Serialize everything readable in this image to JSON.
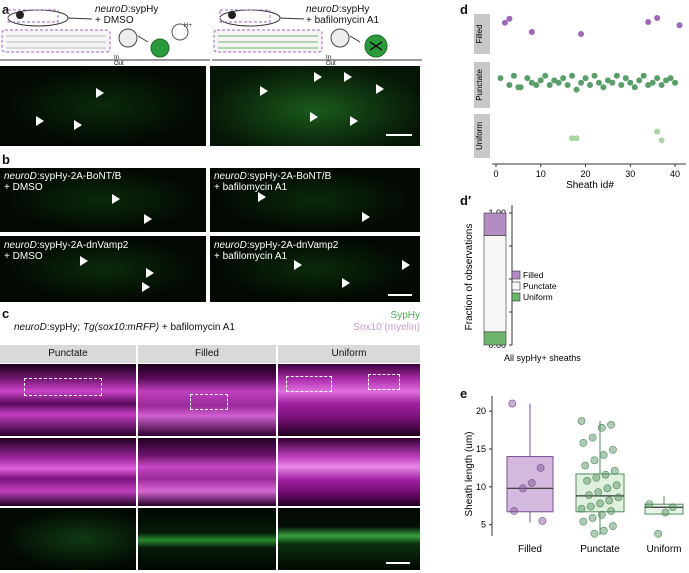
{
  "panel_labels": {
    "a": "a",
    "b": "b",
    "c": "c",
    "d": "d",
    "d_prime": "d′",
    "e": "e"
  },
  "panel_a": {
    "left_label_gene": "neuroD",
    "left_label_suffix": ":sypHy",
    "left_label_line2": "+ DMSO",
    "right_label_gene": "neuroD",
    "right_label_suffix": ":sypHy",
    "right_label_line2": "+ bafilomycin A1",
    "in_label": "In",
    "out_label": "Out",
    "h_plus": "H+"
  },
  "panel_b": {
    "tl_gene": "neuroD",
    "tl_suffix": ":sypHy-2A-BoNT/B",
    "tl_line2": "+ DMSO",
    "tr_gene": "neuroD",
    "tr_suffix": ":sypHy-2A-BoNT/B",
    "tr_line2": "+ bafilomycin A1",
    "bl_gene": "neuroD",
    "bl_suffix": ":sypHy-2A-dnVamp2",
    "bl_line2": "+ DMSO",
    "br_gene": "neuroD",
    "br_suffix": ":sypHy-2A-dnVamp2",
    "br_line2": "+ bafilomycin A1"
  },
  "panel_c": {
    "title_gene": "neuroD",
    "title_mid": ":sypHy; ",
    "title_tg": "Tg(sox10:mRFP)",
    "title_end": " + bafilomycin A1",
    "legend_sypHy": "SypHy",
    "legend_sox10": "Sox10 (myelin)",
    "columns": [
      "Punctate",
      "Filled",
      "Uniform"
    ],
    "colors": {
      "sypHy": "#4daa57",
      "sox10": "#c77fc7"
    }
  },
  "chart_data": [
    {
      "id": "d",
      "type": "scatter",
      "xlabel": "Sheath id#",
      "categories": [
        "Filled",
        "Punctate",
        "Uniform"
      ],
      "xlim": [
        0,
        42
      ],
      "xticks": [
        0,
        10,
        20,
        30,
        40
      ],
      "colors": {
        "Filled": "#a066b8",
        "Punctate": "#5a9e6a",
        "Uniform": "#a8d6a0"
      },
      "series": [
        {
          "name": "Filled",
          "x": [
            2,
            3,
            8,
            19,
            34,
            36,
            41
          ],
          "y": [
            0.22,
            0.12,
            0.45,
            0.5,
            0.2,
            0.1,
            0.28
          ]
        },
        {
          "name": "Punctate",
          "x": [
            1,
            3,
            4,
            5,
            5.5,
            7,
            8,
            9,
            10,
            11,
            12,
            13,
            14,
            15,
            16,
            17,
            18,
            19,
            20,
            21,
            22,
            23,
            24,
            25,
            26,
            27,
            28,
            29,
            30,
            31,
            32,
            33,
            34,
            35,
            36,
            37,
            38,
            39,
            40
          ],
          "y": [
            0.35,
            0.5,
            0.3,
            0.55,
            0.55,
            0.35,
            0.45,
            0.5,
            0.4,
            0.3,
            0.5,
            0.4,
            0.45,
            0.35,
            0.5,
            0.3,
            0.6,
            0.45,
            0.35,
            0.5,
            0.3,
            0.45,
            0.55,
            0.4,
            0.45,
            0.3,
            0.5,
            0.35,
            0.45,
            0.55,
            0.4,
            0.3,
            0.5,
            0.45,
            0.35,
            0.5,
            0.4,
            0.35,
            0.45
          ]
        },
        {
          "name": "Uniform",
          "x": [
            17,
            18,
            36,
            37
          ],
          "y": [
            0.55,
            0.55,
            0.4,
            0.6
          ]
        }
      ]
    },
    {
      "id": "d_prime",
      "type": "bar",
      "ylabel": "Fraction of observations",
      "categories": [
        "All sypHy+ sheaths"
      ],
      "ylim": [
        0,
        1
      ],
      "yticks": [
        "0.00",
        "0.25",
        "0.50",
        "0.75",
        "1.00"
      ],
      "stacks": [
        {
          "name": "Uniform",
          "value": 0.1,
          "color": "#6db56d"
        },
        {
          "name": "Punctate",
          "value": 0.73,
          "color": "#f7f7f7"
        },
        {
          "name": "Filled",
          "value": 0.17,
          "color": "#b48cc4"
        }
      ],
      "legend": [
        "Filled",
        "Punctate",
        "Uniform"
      ]
    },
    {
      "id": "e",
      "type": "box",
      "ylabel": "Sheath length (um)",
      "categories": [
        "Filled",
        "Punctate",
        "Uniform"
      ],
      "ylim": [
        3.5,
        22
      ],
      "yticks": [
        5,
        10,
        15,
        20
      ],
      "boxes": [
        {
          "name": "Filled",
          "q1": 6.7,
          "median": 9.8,
          "q3": 14,
          "min": 5.3,
          "max": 21,
          "color": "#c9a8d6",
          "edge": "#7d4f94",
          "points": [
            21,
            12.5,
            10.5,
            9.8,
            6.8,
            5.5
          ]
        },
        {
          "name": "Punctate",
          "q1": 6.7,
          "median": 8.8,
          "q3": 11.7,
          "min": 3.6,
          "max": 18.7,
          "color": "#d8ecd6",
          "edge": "#4f8c5c",
          "points": [
            18.7,
            18.2,
            17.8,
            16.5,
            15.8,
            14.9,
            14.2,
            13.5,
            12.8,
            12.1,
            11.6,
            11.2,
            10.8,
            10.2,
            9.8,
            9.3,
            8.9,
            8.6,
            8.2,
            7.8,
            7.4,
            7.1,
            6.8,
            6.3,
            5.9,
            5.4,
            4.8,
            4.2,
            3.8
          ]
        },
        {
          "name": "Uniform",
          "q1": 6.4,
          "median": 7.3,
          "q3": 7.7,
          "min": 6.4,
          "max": 8.8,
          "color": "#e4f0e2",
          "edge": "#4f8c5c",
          "points": [
            7.7,
            7.3,
            6.6,
            3.8
          ]
        }
      ]
    }
  ]
}
